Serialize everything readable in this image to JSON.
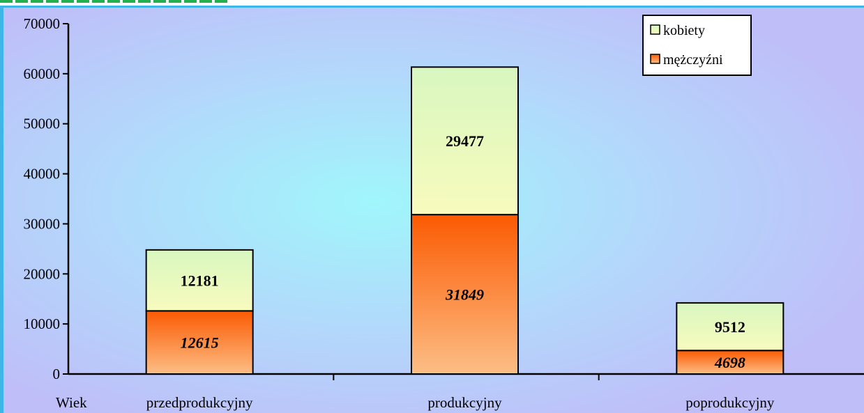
{
  "colors": {
    "kobiety_top": "#d8f7c0",
    "kobiety_bottom": "#f8fbbd",
    "mezczyzni_top": "#fb5a02",
    "mezczyzni_bottom": "#fcbe86"
  },
  "chart_data": {
    "type": "bar",
    "stacked": true,
    "xlabel": "Wiek",
    "ylabel": "",
    "ylim": [
      0,
      70000
    ],
    "yticks": [
      "0",
      "10000",
      "20000",
      "30000",
      "40000",
      "50000",
      "60000",
      "70000"
    ],
    "categories": [
      "przedprodukcyjny",
      "produkcyjny",
      "poprodukcyjny"
    ],
    "series": [
      {
        "name": "mężczyźni",
        "values": [
          12615,
          31849,
          4698
        ],
        "labels": [
          "12615",
          "31849",
          "4698"
        ]
      },
      {
        "name": "kobiety",
        "values": [
          12181,
          29477,
          9512
        ],
        "labels": [
          "12181",
          "29477",
          "9512"
        ]
      }
    ],
    "legend": {
      "position": "top-right",
      "items": [
        "kobiety",
        "mężczyźni"
      ]
    },
    "grid": false
  }
}
